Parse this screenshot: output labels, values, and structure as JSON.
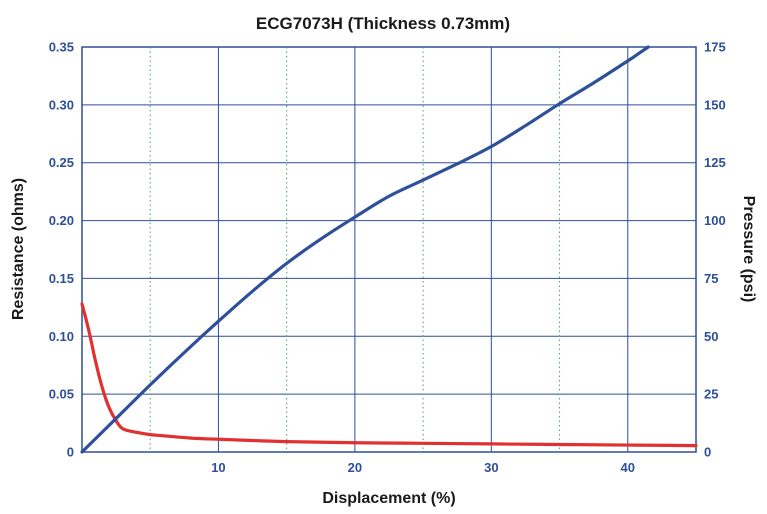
{
  "chart_data": {
    "type": "line",
    "title": "ECG7073H (Thickness 0.73mm)",
    "xlabel": "Displacement (%)",
    "ylabel_left": "Resistance (ohms)",
    "ylabel_right": "Pressure (psi)",
    "xlim": [
      0,
      45
    ],
    "ylim_left": [
      0,
      0.35
    ],
    "ylim_right": [
      0,
      175
    ],
    "x_ticks": [
      10,
      20,
      30,
      40
    ],
    "x_tick_labels": [
      "10",
      "20",
      "30",
      "40"
    ],
    "y_left_ticks": [
      0,
      0.05,
      0.1,
      0.15,
      0.2,
      0.25,
      0.3,
      0.35
    ],
    "y_left_tick_labels": [
      "0",
      "0.05",
      "0.10",
      "0.15",
      "0.20",
      "0.25",
      "0.30",
      "0.35"
    ],
    "y_right_ticks": [
      0,
      25,
      50,
      75,
      100,
      125,
      150,
      175
    ],
    "y_right_tick_labels": [
      "0",
      "25",
      "50",
      "75",
      "100",
      "125",
      "150",
      "175"
    ],
    "minor_x_gridlines": [
      5,
      15,
      25,
      35
    ],
    "grid": true,
    "series": [
      {
        "axis": "left",
        "color": "#e03030",
        "x": [
          0,
          0.5,
          1,
          1.5,
          2,
          2.5,
          3,
          4,
          5,
          6,
          8,
          10,
          15,
          20,
          25,
          30,
          35,
          40,
          45
        ],
        "y": [
          0.128,
          0.105,
          0.078,
          0.055,
          0.038,
          0.027,
          0.02,
          0.017,
          0.015,
          0.014,
          0.012,
          0.011,
          0.009,
          0.008,
          0.0075,
          0.007,
          0.0065,
          0.006,
          0.0055
        ]
      },
      {
        "axis": "right",
        "color": "#2e4f9a",
        "x": [
          0,
          2.5,
          5,
          7.5,
          10,
          12.5,
          15,
          17.5,
          20,
          22.5,
          25,
          27.5,
          30,
          32.5,
          35,
          37.5,
          40,
          41.5
        ],
        "y": [
          0,
          14.5,
          29,
          43,
          56.5,
          69.5,
          81.5,
          92,
          101.5,
          110.5,
          117.5,
          124.5,
          132,
          141,
          150.5,
          159.5,
          169,
          175
        ]
      }
    ]
  }
}
